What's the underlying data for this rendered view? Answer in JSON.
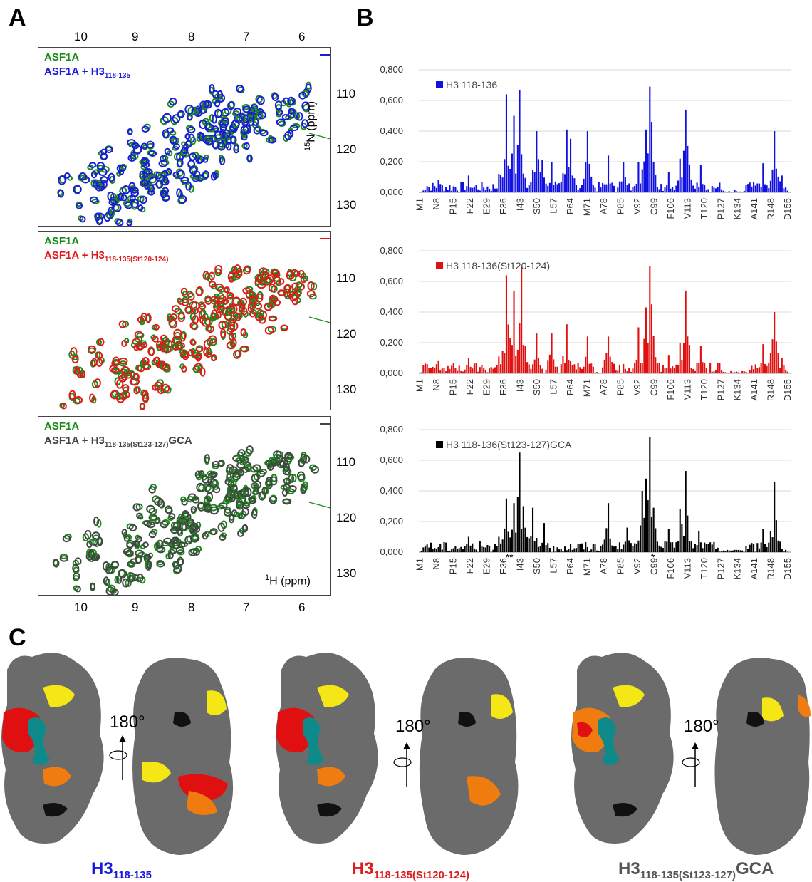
{
  "panels": {
    "a": "A",
    "b": "B",
    "c": "C"
  },
  "nmr": {
    "x_ticks": [
      "10",
      "9",
      "8",
      "7",
      "6"
    ],
    "y_ticks": [
      "110",
      "120",
      "130"
    ],
    "n_axis_label": "15N (ppm)",
    "h_axis_label": "1H (ppm)",
    "spectra": [
      {
        "ref": "ASF1A",
        "complex": "ASF1A + H3",
        "complex_sub": "118-135",
        "complex_suffix": "",
        "color": "#1a1adc"
      },
      {
        "ref": "ASF1A",
        "complex": "ASF1A + H3",
        "complex_sub": "118-135(St120-124)",
        "complex_suffix": "",
        "color": "#e01a1a"
      },
      {
        "ref": "ASF1A",
        "complex": "ASF1A + H3",
        "complex_sub": "118-135(St123-127)",
        "complex_suffix": "GCA",
        "color": "#444444"
      }
    ],
    "ref_color": "#1a8a1a"
  },
  "chart_data": [
    {
      "type": "bar",
      "title": "H3 118-136",
      "color": "#1010e0",
      "yticks": [
        "0,000",
        "0,200",
        "0,400",
        "0,600",
        "0,800"
      ],
      "ylim": [
        0,
        0.8
      ],
      "categories": [
        "M1",
        "N8",
        "P15",
        "F22",
        "E29",
        "E36",
        "I43",
        "S50",
        "L57",
        "P64",
        "M71",
        "A78",
        "P85",
        "V92",
        "C99",
        "F106",
        "V113",
        "T120",
        "P127",
        "K134",
        "A141",
        "R148",
        "D155"
      ],
      "peaks": [
        [
          4,
          0.04
        ],
        [
          10,
          0.08
        ],
        [
          26,
          0.11
        ],
        [
          42,
          0.12
        ],
        [
          46,
          0.64
        ],
        [
          50,
          0.5
        ],
        [
          53,
          0.67
        ],
        [
          62,
          0.4
        ],
        [
          65,
          0.21
        ],
        [
          70,
          0.2
        ],
        [
          78,
          0.41
        ],
        [
          80,
          0.35
        ],
        [
          89,
          0.4
        ],
        [
          100,
          0.24
        ],
        [
          108,
          0.2
        ],
        [
          116,
          0.2
        ],
        [
          120,
          0.41
        ],
        [
          122,
          0.69
        ],
        [
          123,
          0.46
        ],
        [
          132,
          0.13
        ],
        [
          138,
          0.22
        ],
        [
          141,
          0.54
        ],
        [
          149,
          0.18
        ],
        [
          160,
          0.02
        ],
        [
          182,
          0.19
        ],
        [
          188,
          0.4
        ],
        [
          192,
          0.11
        ]
      ]
    },
    {
      "type": "bar",
      "title": "H3 118-136(St120-124)",
      "color": "#e01010",
      "yticks": [
        "0,000",
        "0,200",
        "0,400",
        "0,600",
        "0,800"
      ],
      "ylim": [
        0,
        0.8
      ],
      "categories": [
        "M1",
        "N8",
        "P15",
        "F22",
        "E29",
        "E36",
        "I43",
        "S50",
        "L57",
        "P64",
        "M71",
        "A78",
        "P85",
        "V92",
        "C99",
        "F106",
        "V113",
        "T120",
        "P127",
        "K134",
        "A141",
        "R148",
        "D155"
      ],
      "peaks": [
        [
          4,
          0.06
        ],
        [
          10,
          0.08
        ],
        [
          26,
          0.1
        ],
        [
          42,
          0.11
        ],
        [
          46,
          0.64
        ],
        [
          50,
          0.54
        ],
        [
          54,
          0.7
        ],
        [
          62,
          0.26
        ],
        [
          70,
          0.26
        ],
        [
          78,
          0.32
        ],
        [
          89,
          0.24
        ],
        [
          100,
          0.24
        ],
        [
          116,
          0.3
        ],
        [
          120,
          0.43
        ],
        [
          122,
          0.7
        ],
        [
          123,
          0.45
        ],
        [
          132,
          0.12
        ],
        [
          138,
          0.2
        ],
        [
          141,
          0.54
        ],
        [
          149,
          0.18
        ],
        [
          160,
          0.02
        ],
        [
          182,
          0.19
        ],
        [
          188,
          0.4
        ],
        [
          192,
          0.1
        ]
      ]
    },
    {
      "type": "bar",
      "title": "H3 118-136(St123-127)GCA",
      "color": "#000000",
      "yticks": [
        "0,000",
        "0,200",
        "0,400",
        "0,600",
        "0,800"
      ],
      "ylim": [
        0,
        0.8
      ],
      "categories": [
        "M1",
        "N8",
        "P15",
        "F22",
        "E29",
        "E36",
        "I43",
        "S50",
        "L57",
        "P64",
        "M71",
        "A78",
        "P85",
        "V92",
        "C99",
        "F106",
        "V113",
        "T120",
        "P127",
        "K134",
        "A141",
        "R148",
        "D155"
      ],
      "peaks": [
        [
          4,
          0.05
        ],
        [
          26,
          0.1
        ],
        [
          42,
          0.1
        ],
        [
          46,
          0.35
        ],
        [
          50,
          0.32
        ],
        [
          53,
          0.65
        ],
        [
          55,
          0.3
        ],
        [
          60,
          0.29
        ],
        [
          66,
          0.19
        ],
        [
          100,
          0.32
        ],
        [
          110,
          0.16
        ],
        [
          118,
          0.4
        ],
        [
          120,
          0.48
        ],
        [
          122,
          0.75
        ],
        [
          124,
          0.29
        ],
        [
          132,
          0.15
        ],
        [
          138,
          0.28
        ],
        [
          141,
          0.53
        ],
        [
          148,
          0.14
        ],
        [
          182,
          0.15
        ],
        [
          186,
          0.12
        ],
        [
          188,
          0.46
        ],
        [
          192,
          0.02
        ]
      ],
      "markers": [
        [
          47,
          "*"
        ],
        [
          49,
          "*"
        ],
        [
          124,
          "*"
        ]
      ]
    }
  ],
  "structures": {
    "rotation_label": "180°",
    "labels": [
      {
        "main": "H3",
        "sub": "118-135",
        "suffix": "",
        "color": "#1a1adc"
      },
      {
        "main": "H3",
        "sub": "118-135(St120-124)",
        "suffix": "",
        "color": "#e01a1a"
      },
      {
        "main": "H3",
        "sub": "118-135(St123-127)",
        "suffix": "GCA",
        "color": "#555555"
      }
    ]
  }
}
